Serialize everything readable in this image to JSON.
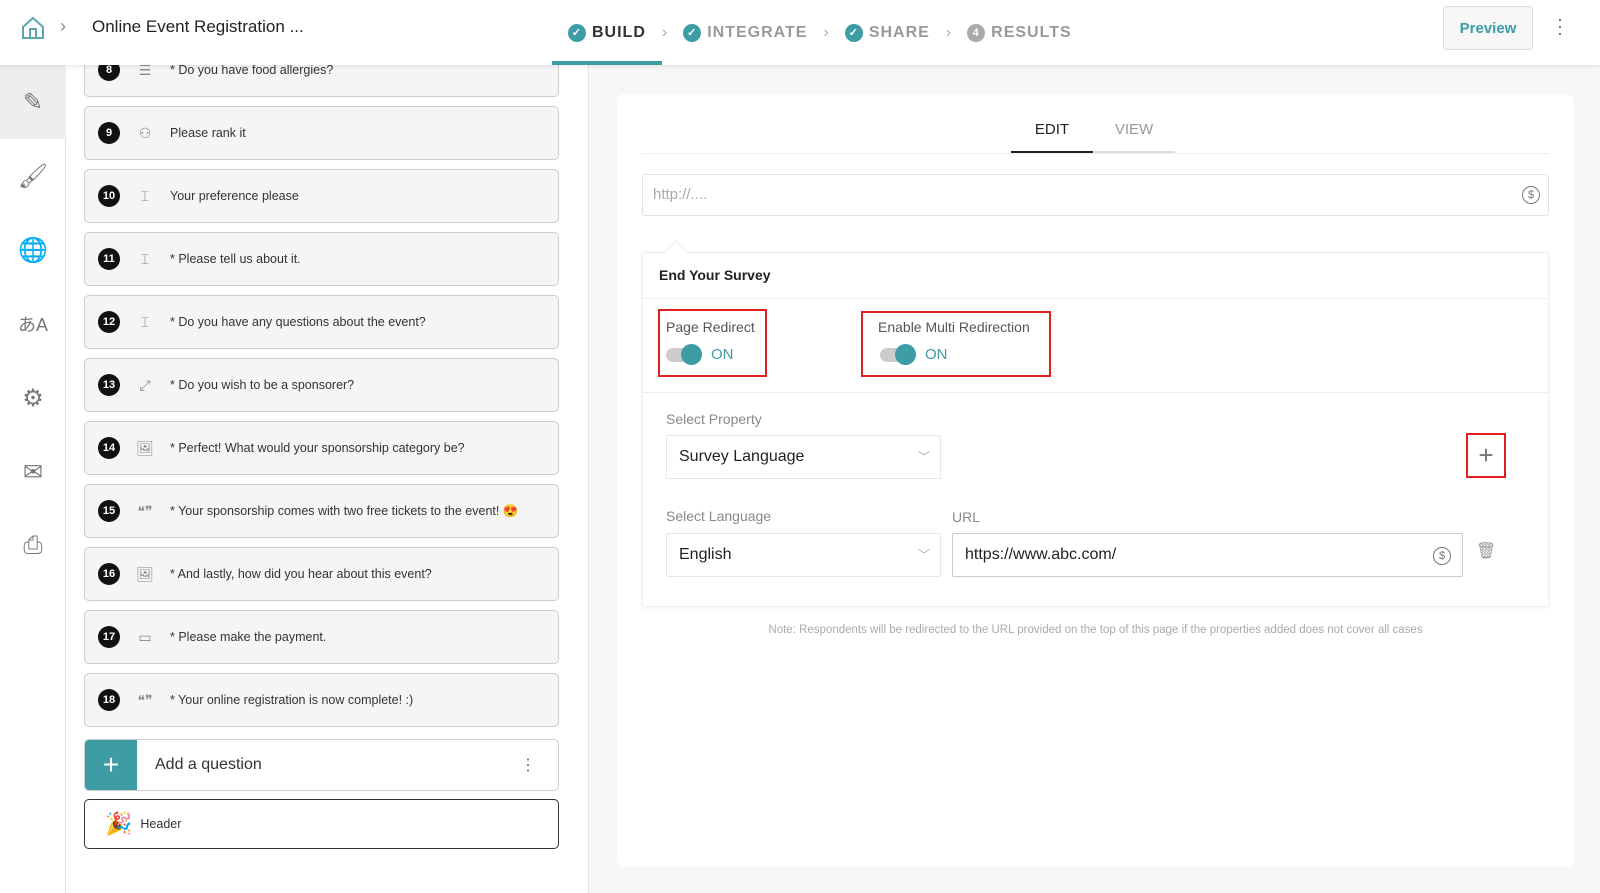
{
  "header": {
    "title": "Online Event Registration ...",
    "preview_label": "Preview",
    "steps": [
      {
        "label": "BUILD",
        "state": "done",
        "active": true
      },
      {
        "label": "INTEGRATE",
        "state": "done"
      },
      {
        "label": "SHARE",
        "state": "done"
      },
      {
        "label": "RESULTS",
        "number": "4"
      }
    ]
  },
  "rail": {
    "items": [
      "edit-icon",
      "paint-brush-icon",
      "globe-icon",
      "translate-icon",
      "gear-icon",
      "mail-icon",
      "print-icon"
    ]
  },
  "questions": [
    {
      "n": "8",
      "text": "* Do you have food allergies?",
      "icon": "list-icon"
    },
    {
      "n": "9",
      "text": "Please rank it",
      "icon": "rank-icon"
    },
    {
      "n": "10",
      "text": "Your preference please",
      "icon": "text-input-icon"
    },
    {
      "n": "11",
      "text": "* Please tell us about it.",
      "icon": "text-input-icon"
    },
    {
      "n": "12",
      "text": "* Do you have any questions about the event?",
      "icon": "text-input-icon"
    },
    {
      "n": "13",
      "text": "* Do you wish to be a sponsorer?",
      "icon": "choice-icon"
    },
    {
      "n": "14",
      "text": "* Perfect! What would your sponsorship category be?",
      "icon": "image-icon"
    },
    {
      "n": "15",
      "text": "* Your sponsorship comes with two free tickets to the event! 😍",
      "icon": "quote-icon"
    },
    {
      "n": "16",
      "text": "* And lastly, how did you hear about this event?",
      "icon": "image-icon"
    },
    {
      "n": "17",
      "text": "* Please make the payment.",
      "icon": "payment-icon"
    },
    {
      "n": "18",
      "text": "* Your online registration is now complete! :)",
      "icon": "quote-icon"
    }
  ],
  "add_question": {
    "label": "Add a question"
  },
  "header_item": {
    "label": "Header"
  },
  "panel": {
    "tabs": [
      {
        "label": "EDIT",
        "active": true
      },
      {
        "label": "VIEW"
      }
    ],
    "url_placeholder": "http://....",
    "card_title": "End Your Survey",
    "page_redirect": {
      "label": "Page Redirect",
      "state": "ON"
    },
    "multi_redirect": {
      "label": "Enable Multi Redirection",
      "state": "ON"
    },
    "select_property": {
      "label": "Select Property",
      "value": "Survey Language"
    },
    "select_language": {
      "label": "Select Language",
      "value": "English"
    },
    "url": {
      "label": "URL",
      "value": "https://www.abc.com/"
    },
    "note": "Note: Respondents will be redirected to the URL provided on the top of this page if the properties added does not cover all cases"
  },
  "colors": {
    "accent": "#3d9ca4",
    "highlight": "#e02020"
  }
}
